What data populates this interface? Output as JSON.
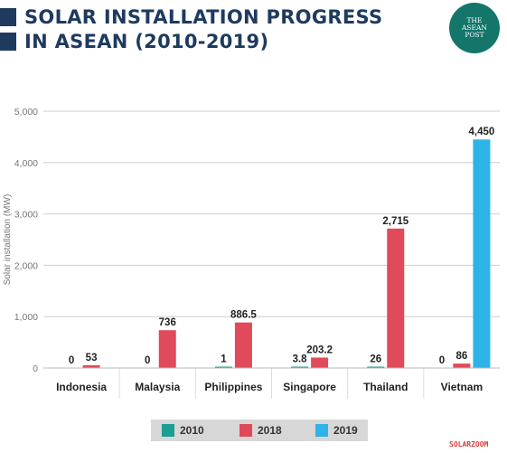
{
  "header": {
    "title_line1": "SOLAR INSTALLATION PROGRESS",
    "title_line2": "IN ASEAN (2010-2019)",
    "logo_line1": "THE",
    "logo_line2": "ASEAN",
    "logo_line3": "POST"
  },
  "source": "SOLARZOOM",
  "colors": {
    "title": "#1e3a5f",
    "series_2010": "#1a9e93",
    "series_2018": "#e04a5a",
    "series_2019": "#2eb3e6",
    "logo_bg": "#14766b"
  },
  "chart_data": {
    "type": "bar",
    "categories": [
      "Indonesia",
      "Malaysia",
      "Philippines",
      "Singapore",
      "Thailand",
      "Vietnam"
    ],
    "series": [
      {
        "name": "2010",
        "values": [
          0,
          0,
          1,
          3.8,
          26,
          0
        ],
        "labels": [
          "0",
          "0",
          "1",
          "3.8",
          "26",
          "0"
        ]
      },
      {
        "name": "2018",
        "values": [
          53,
          736,
          886.5,
          203.2,
          2715,
          86
        ],
        "labels": [
          "53",
          "736",
          "886.5",
          "203.2",
          "2,715",
          "86"
        ]
      },
      {
        "name": "2019",
        "values": [
          null,
          null,
          null,
          null,
          null,
          4450
        ],
        "labels": [
          "",
          "",
          "",
          "",
          "",
          "4,450"
        ]
      }
    ],
    "ylabel": "Solar installation (MW)",
    "ylim": [
      0,
      5000
    ],
    "yticks": [
      0,
      1000,
      2000,
      3000,
      4000,
      5000
    ],
    "ytick_labels": [
      "0",
      "1,000",
      "2,000",
      "3,000",
      "4,000",
      "5,000"
    ],
    "grid": true,
    "legend_position": "bottom"
  }
}
